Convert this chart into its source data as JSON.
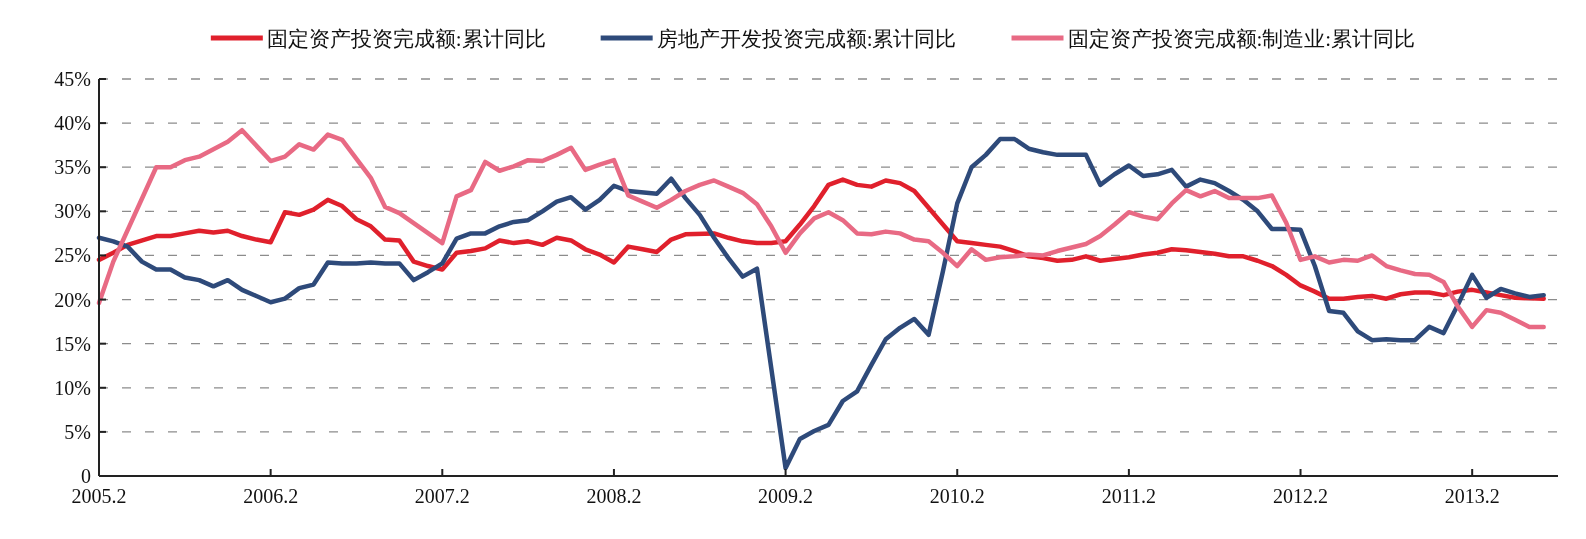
{
  "chart_data": {
    "type": "line",
    "xlim": [
      "2005-02",
      "2013-08"
    ],
    "xticks": [
      {
        "value": "2005-02",
        "label": "2005.2"
      },
      {
        "value": "2006-02",
        "label": "2006.2"
      },
      {
        "value": "2007-02",
        "label": "2007.2"
      },
      {
        "value": "2008-02",
        "label": "2008.2"
      },
      {
        "value": "2009-02",
        "label": "2009.2"
      },
      {
        "value": "2010-02",
        "label": "2010.2"
      },
      {
        "value": "2011-02",
        "label": "2011.2"
      },
      {
        "value": "2012-02",
        "label": "2012.2"
      },
      {
        "value": "2013-02",
        "label": "2013.2"
      }
    ],
    "ylim": [
      0,
      45
    ],
    "yticks": [
      0,
      {
        "value": 5,
        "label": "5%"
      },
      {
        "value": 10,
        "label": "10%"
      },
      {
        "value": 15,
        "label": "15%"
      },
      {
        "value": 20,
        "label": "20%"
      },
      {
        "value": 25,
        "label": "25%"
      },
      {
        "value": 30,
        "label": "30%"
      },
      {
        "value": 35,
        "label": "35%"
      },
      {
        "value": 40,
        "label": "40%"
      },
      {
        "value": 45,
        "label": "45%"
      }
    ],
    "grid": "y",
    "legend": "top",
    "series": [
      {
        "name": "固定资产投资完成额:累计同比",
        "color": "#e0202c",
        "x": [
          "2005-02",
          "2005-03",
          "2005-04",
          "2005-06",
          "2005-07",
          "2005-08",
          "2005-09",
          "2005-10",
          "2005-11",
          "2005-12",
          "2006-01",
          "2006-02",
          "2006-03",
          "2006-04",
          "2006-05",
          "2006-06",
          "2006-07",
          "2006-08",
          "2006-09",
          "2006-10",
          "2006-11",
          "2006-12",
          "2007-01",
          "2007-02",
          "2007-03",
          "2007-04",
          "2007-05",
          "2007-06",
          "2007-07",
          "2007-08",
          "2007-09",
          "2007-10",
          "2007-11",
          "2007-12",
          "2008-01",
          "2008-02",
          "2008-03",
          "2008-04",
          "2008-05",
          "2008-06",
          "2008-07",
          "2008-09",
          "2008-10",
          "2008-11",
          "2008-12",
          "2009-01",
          "2009-02",
          "2009-03",
          "2009-04",
          "2009-05",
          "2009-06",
          "2009-07",
          "2009-08",
          "2009-09",
          "2009-10",
          "2009-11",
          "2009-12",
          "2010-02",
          "2010-03",
          "2010-04",
          "2010-05",
          "2010-06",
          "2010-07",
          "2010-08",
          "2010-09",
          "2010-10",
          "2010-11",
          "2010-12",
          "2011-01",
          "2011-02",
          "2011-03",
          "2011-04",
          "2011-05",
          "2011-06",
          "2011-07",
          "2011-08",
          "2011-09",
          "2011-10",
          "2011-11",
          "2011-12",
          "2012-01",
          "2012-02",
          "2012-03",
          "2012-04",
          "2012-05",
          "2012-06",
          "2012-07",
          "2012-08",
          "2012-09",
          "2012-10",
          "2012-11",
          "2012-12",
          "2013-01",
          "2013-02",
          "2013-03",
          "2013-04",
          "2013-05",
          "2013-07"
        ],
        "values": [
          24.5,
          25.3,
          26.2,
          27.2,
          27.2,
          27.5,
          27.8,
          27.6,
          27.8,
          27.2,
          26.8,
          26.5,
          29.9,
          29.6,
          30.2,
          31.3,
          30.6,
          29.1,
          28.3,
          26.8,
          26.7,
          24.3,
          23.8,
          23.4,
          25.3,
          25.5,
          25.8,
          26.7,
          26.4,
          26.6,
          26.2,
          27,
          26.7,
          25.7,
          25.1,
          24.2,
          26,
          25.7,
          25.4,
          26.8,
          27.4,
          27.5,
          27,
          26.6,
          26.4,
          26.4,
          26.6,
          28.5,
          30.6,
          33,
          33.6,
          33,
          32.8,
          33.5,
          33.2,
          32.3,
          30.4,
          26.6,
          26.4,
          26.2,
          26,
          25.5,
          24.9,
          24.7,
          24.4,
          24.5,
          24.9,
          24.4,
          24.6,
          24.8,
          25.1,
          25.3,
          25.7,
          25.6,
          25.4,
          25.2,
          24.9,
          24.9,
          24.4,
          23.8,
          22.8,
          21.6,
          20.9,
          20.1,
          20.1,
          20.3,
          20.4,
          20.1,
          20.6,
          20.8,
          20.8,
          20.5,
          20.9,
          21.1,
          20.8,
          20.5,
          20.2,
          20.1
        ]
      },
      {
        "name": "房地产开发投资完成额:累计同比",
        "color": "#2e4a7a",
        "x": [
          "2005-02",
          "2005-03",
          "2005-04",
          "2005-05",
          "2005-06",
          "2005-07",
          "2005-08",
          "2005-09",
          "2005-10",
          "2005-11",
          "2005-12",
          "2006-01",
          "2006-02",
          "2006-03",
          "2006-04",
          "2006-05",
          "2006-06",
          "2006-07",
          "2006-08",
          "2006-09",
          "2006-10",
          "2006-11",
          "2006-12",
          "2007-01",
          "2007-02",
          "2007-03",
          "2007-04",
          "2007-05",
          "2007-06",
          "2007-07",
          "2007-08",
          "2007-09",
          "2007-10",
          "2007-11",
          "2007-12",
          "2008-01",
          "2008-02",
          "2008-03",
          "2008-05",
          "2008-06",
          "2008-07",
          "2008-08",
          "2008-09",
          "2008-10",
          "2008-11",
          "2008-12",
          "2009-02",
          "2009-03",
          "2009-04",
          "2009-05",
          "2009-06",
          "2009-07",
          "2009-08",
          "2009-09",
          "2009-10",
          "2009-11",
          "2009-12",
          "2010-01",
          "2010-02",
          "2010-03",
          "2010-04",
          "2010-05",
          "2010-06",
          "2010-07",
          "2010-08",
          "2010-09",
          "2010-11",
          "2010-12",
          "2011-01",
          "2011-02",
          "2011-03",
          "2011-04",
          "2011-05",
          "2011-06",
          "2011-07",
          "2011-08",
          "2011-09",
          "2011-10",
          "2011-11",
          "2011-12",
          "2012-01",
          "2012-02",
          "2012-03",
          "2012-04",
          "2012-05",
          "2012-06",
          "2012-07",
          "2012-08",
          "2012-09",
          "2012-10",
          "2012-11",
          "2012-12",
          "2013-01",
          "2013-02",
          "2013-03",
          "2013-04",
          "2013-05",
          "2013-06",
          "2013-07"
        ],
        "values": [
          27,
          26.6,
          26,
          24.3,
          23.4,
          23.4,
          22.5,
          22.2,
          21.5,
          22.2,
          21.1,
          20.4,
          19.7,
          20.1,
          21.3,
          21.7,
          24.2,
          24.1,
          24.1,
          24.2,
          24.1,
          24.1,
          22.2,
          23.1,
          24.1,
          26.9,
          27.5,
          27.5,
          28.3,
          28.8,
          29,
          30,
          31.1,
          31.6,
          30.2,
          31.3,
          32.9,
          32.3,
          32,
          33.7,
          31.5,
          29.6,
          27,
          24.7,
          22.6,
          23.5,
          0.9,
          4.2,
          5.1,
          5.8,
          8.5,
          9.6,
          12.6,
          15.5,
          16.8,
          17.8,
          16,
          23.2,
          30.9,
          35,
          36.4,
          38.2,
          38.2,
          37.1,
          36.7,
          36.4,
          36.4,
          33,
          34.2,
          35.2,
          34,
          34.2,
          34.7,
          32.8,
          33.6,
          33.2,
          32.3,
          31.3,
          30,
          28,
          28,
          27.9,
          23.8,
          18.7,
          18.5,
          16.4,
          15.4,
          15.5,
          15.4,
          15.4,
          16.9,
          16.2,
          19.4,
          22.8,
          20.2,
          21.2,
          20.7,
          20.3,
          20.5
        ]
      },
      {
        "name": "固定资产投资完成额:制造业:累计同比",
        "color": "#e86a84",
        "x": [
          "2005-02",
          "2005-03",
          "2005-06",
          "2005-07",
          "2005-08",
          "2005-09",
          "2005-11",
          "2005-12",
          "2006-02",
          "2006-03",
          "2006-04",
          "2006-05",
          "2006-06",
          "2006-07",
          "2006-09",
          "2006-10",
          "2006-11",
          "2007-02",
          "2007-03",
          "2007-04",
          "2007-05",
          "2007-06",
          "2007-07",
          "2007-08",
          "2007-09",
          "2007-10",
          "2007-11",
          "2007-12",
          "2008-01",
          "2008-02",
          "2008-03",
          "2008-04",
          "2008-05",
          "2008-06",
          "2008-07",
          "2008-08",
          "2008-09",
          "2008-10",
          "2008-11",
          "2008-12",
          "2009-01",
          "2009-02",
          "2009-03",
          "2009-04",
          "2009-05",
          "2009-06",
          "2009-07",
          "2009-08",
          "2009-09",
          "2009-10",
          "2009-11",
          "2009-12",
          "2010-01",
          "2010-02",
          "2010-03",
          "2010-04",
          "2010-05",
          "2010-06",
          "2010-07",
          "2010-08",
          "2010-09",
          "2010-10",
          "2010-11",
          "2010-12",
          "2011-01",
          "2011-02",
          "2011-03",
          "2011-04",
          "2011-05",
          "2011-06",
          "2011-07",
          "2011-08",
          "2011-09",
          "2011-11",
          "2011-12",
          "2012-01",
          "2012-02",
          "2012-03",
          "2012-04",
          "2012-05",
          "2012-06",
          "2012-07",
          "2012-08",
          "2012-09",
          "2012-10",
          "2012-11",
          "2012-12",
          "2013-01",
          "2013-02",
          "2013-03",
          "2013-04",
          "2013-05",
          "2013-06",
          "2013-07"
        ],
        "values": [
          19.6,
          24.3,
          35,
          35,
          35.8,
          36.2,
          37.9,
          39.2,
          35.7,
          36.2,
          37.6,
          37,
          38.7,
          38.1,
          33.8,
          30.5,
          29.8,
          26.4,
          31.7,
          32.4,
          35.6,
          34.6,
          35.1,
          35.8,
          35.7,
          36.4,
          37.2,
          34.7,
          35.3,
          35.8,
          31.8,
          31.1,
          30.4,
          31.3,
          32.3,
          33,
          33.5,
          32.8,
          32.1,
          30.8,
          28.3,
          25.3,
          27.5,
          29.2,
          29.9,
          29,
          27.5,
          27.4,
          27.7,
          27.5,
          26.8,
          26.6,
          25.3,
          23.8,
          25.7,
          24.5,
          24.8,
          24.9,
          25.1,
          25,
          25.5,
          25.9,
          26.3,
          27.2,
          28.5,
          29.9,
          29.4,
          29.1,
          30.9,
          32.4,
          31.7,
          32.3,
          31.5,
          31.5,
          31.8,
          28.7,
          24.5,
          24.9,
          24.2,
          24.5,
          24.4,
          25,
          23.8,
          23.3,
          22.9,
          22.8,
          22,
          19.2,
          16.9,
          18.8,
          18.5,
          17.7,
          16.9,
          16.9
        ]
      }
    ]
  }
}
